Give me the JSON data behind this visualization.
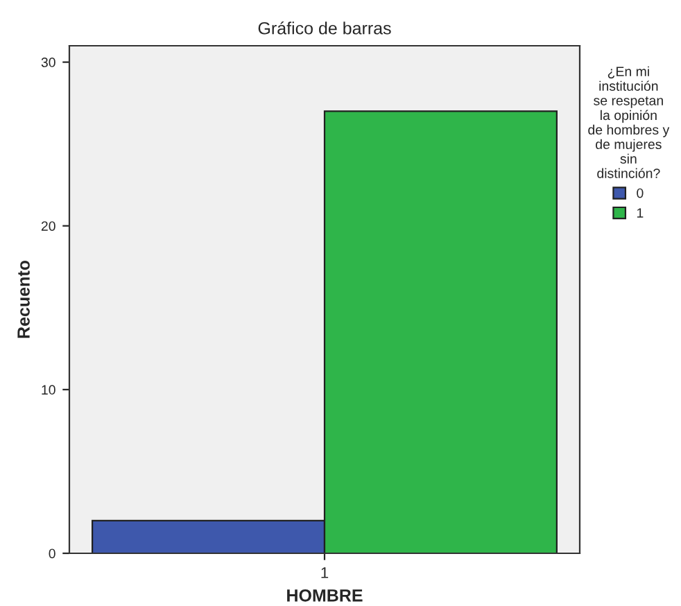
{
  "chart_data": {
    "type": "bar",
    "title": "Gráfico de barras",
    "xlabel": "HOMBRE",
    "ylabel": "Recuento",
    "legend_title": "¿En mi institución se respetan la opinión de hombres y de mujeres sin distinción?",
    "categories": [
      "1"
    ],
    "series": [
      {
        "name": "0",
        "color": "#3e58ac",
        "values": [
          2
        ]
      },
      {
        "name": "1",
        "color": "#2fb54a",
        "values": [
          27
        ]
      }
    ],
    "ylim": [
      0,
      31
    ],
    "yticks": [
      0,
      10,
      20,
      30
    ],
    "grid": false,
    "legend": "right"
  }
}
